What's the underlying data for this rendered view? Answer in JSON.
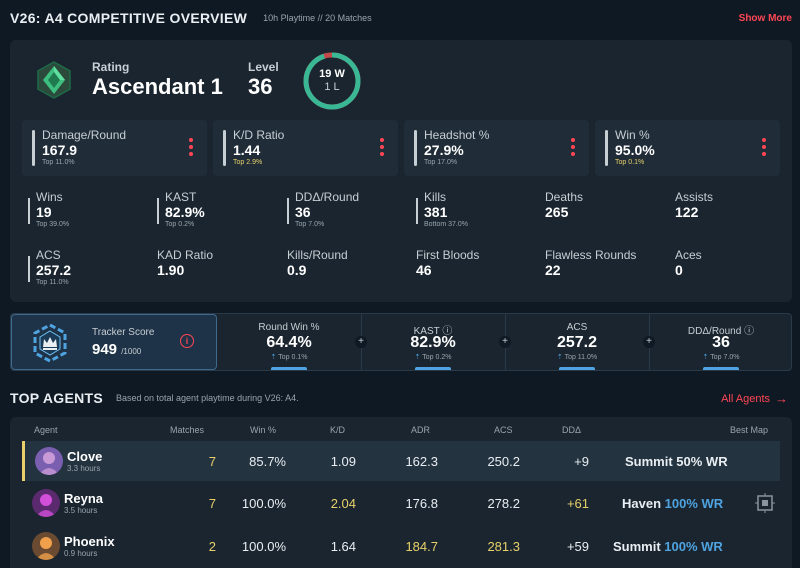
{
  "header": {
    "title": "V26: A4 COMPETITIVE OVERVIEW",
    "meta": "10h Playtime  // 20 Matches",
    "show_more": "Show More"
  },
  "rank": {
    "rating_label": "Rating",
    "rating_value": "Ascendant 1",
    "level_label": "Level",
    "level_value": "36",
    "wins_text": "19 W",
    "losses_text": "1 L",
    "win_fraction": 0.95
  },
  "big_stats": [
    {
      "label": "Damage/Round",
      "value": "167.9",
      "sub": "Top 11.0%",
      "gold": false
    },
    {
      "label": "K/D Ratio",
      "value": "1.44",
      "sub": "Top 2.9%",
      "gold": true
    },
    {
      "label": "Headshot %",
      "value": "27.9%",
      "sub": "Top 17.0%",
      "gold": false
    },
    {
      "label": "Win %",
      "value": "95.0%",
      "sub": "Top 0.1%",
      "gold": true
    }
  ],
  "small_stats": [
    {
      "label": "Wins",
      "value": "19",
      "sub": "Top 39.0%"
    },
    {
      "label": "KAST",
      "value": "82.9%",
      "sub": "Top 0.2%"
    },
    {
      "label": "DDΔ/Round",
      "value": "36",
      "sub": "Top 7.0%"
    },
    {
      "label": "Kills",
      "value": "381",
      "sub": "Bottom 37.0%"
    },
    {
      "label": "Deaths",
      "value": "265"
    },
    {
      "label": "Assists",
      "value": "122"
    },
    {
      "label": "ACS",
      "value": "257.2",
      "sub": "Top 11.0%"
    },
    {
      "label": "KAD Ratio",
      "value": "1.90"
    },
    {
      "label": "Kills/Round",
      "value": "0.9"
    },
    {
      "label": "First Bloods",
      "value": "46"
    },
    {
      "label": "Flawless Rounds",
      "value": "22"
    },
    {
      "label": "Aces",
      "value": "0"
    }
  ],
  "tracker": {
    "label": "Tracker Score",
    "value": "949",
    "max": "/1000",
    "info_glyph": "i",
    "plus_glyph": "+",
    "columns": [
      {
        "label": "Round Win %",
        "value": "64.4%",
        "sub": "Top 0.1%"
      },
      {
        "label": "KAST ⓘ",
        "value": "82.9%",
        "sub": "Top 0.2%"
      },
      {
        "label": "ACS",
        "value": "257.2",
        "sub": "Top 11.0%"
      },
      {
        "label": "DDΔ/Round ⓘ",
        "value": "36",
        "sub": "Top 7.0%"
      }
    ],
    "arrow_glyph": "⇡"
  },
  "top_agents": {
    "title": "TOP AGENTS",
    "subtitle": "Based on total agent playtime during V26: A4.",
    "all_agents": "All Agents",
    "arrow": "→",
    "headers": {
      "agent": "Agent",
      "matches": "Matches",
      "win": "Win %",
      "kd": "K/D",
      "adr": "ADR",
      "acs": "ACS",
      "dd": "DDΔ",
      "map": "Best Map"
    },
    "rows": [
      {
        "name": "Clove",
        "hours": "3.3 hours",
        "matches": "7",
        "win": "85.7%",
        "kd": "1.09",
        "adr": "162.3",
        "acs": "250.2",
        "dd": "+9",
        "map": "Summit",
        "map_wr": "50% WR",
        "avatar_color": "#7a5fb0",
        "avatar_accent": "#c99ad6"
      },
      {
        "name": "Reyna",
        "hours": "3.5 hours",
        "matches": "7",
        "win": "100.0%",
        "kd": "2.04",
        "adr": "176.8",
        "acs": "278.2",
        "dd": "+61",
        "map": "Haven",
        "map_wr": "100% WR",
        "avatar_color": "#5b2a6e",
        "avatar_accent": "#d14fd9"
      },
      {
        "name": "Phoenix",
        "hours": "0.9 hours",
        "matches": "2",
        "win": "100.0%",
        "kd": "1.64",
        "adr": "184.7",
        "acs": "281.3",
        "dd": "+59",
        "map": "Summit",
        "map_wr": "100% WR",
        "avatar_color": "#6b4a32",
        "avatar_accent": "#f0a04a"
      }
    ]
  },
  "colors": {
    "accent_red": "#ff4655",
    "accent_gold": "#e8d06a",
    "accent_blue": "#4fa3e0",
    "win_ring": "#3ab795",
    "loss_ring": "#c44a4a"
  }
}
